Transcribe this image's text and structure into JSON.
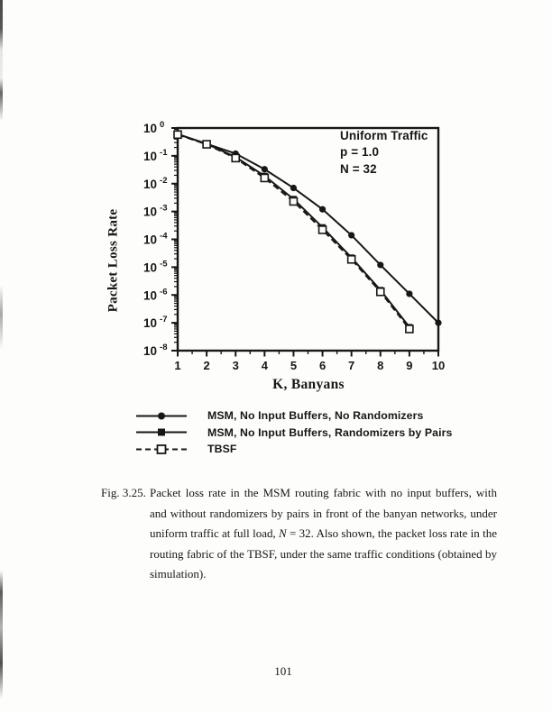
{
  "page": {
    "number": "101"
  },
  "caption": {
    "label": "Fig. 3.25.",
    "text": "Packet loss rate in the MSM routing fabric with no input buffers, with and without randomizers by pairs in front of the banyan networks, under uniform traffic at full load, N = 32. Also shown, the packet loss rate in the routing fabric of the TBSF, under the same traffic conditions (obtained by simulation)."
  },
  "chart_data": {
    "type": "line",
    "title": "",
    "xlabel": "K, Banyans",
    "ylabel": "Packet Loss Rate",
    "x_range": [
      1,
      10
    ],
    "x_ticks": [
      1,
      2,
      3,
      4,
      5,
      6,
      7,
      8,
      9,
      10
    ],
    "y_scale": "log",
    "y_tick_exponents": [
      0,
      -1,
      -2,
      -3,
      -4,
      -5,
      -6,
      -7,
      -8
    ],
    "ylim_exponents": [
      -8,
      0
    ],
    "grid": false,
    "legend_position": "below-chart",
    "ink_color": "#171717",
    "annotation": {
      "lines": [
        "Uniform Traffic",
        "p = 1.0",
        "N = 32"
      ]
    },
    "series": [
      {
        "name": "MSM, No Input Buffers, No Randomizers",
        "marker": "filled-circle",
        "line": "solid",
        "x": [
          1,
          2,
          3,
          4,
          5,
          6,
          7,
          8,
          9,
          10
        ],
        "y": [
          0.6,
          0.27,
          0.12,
          0.033,
          0.007,
          0.0012,
          0.00014,
          1.2e-05,
          1.1e-06,
          1e-07
        ]
      },
      {
        "name": "MSM, No Input Buffers, Randomizers by Pairs",
        "marker": "filled-square",
        "line": "solid",
        "x": [
          1,
          2,
          3,
          4,
          5,
          6,
          7,
          8,
          9
        ],
        "y": [
          0.6,
          0.27,
          0.09,
          0.019,
          0.0028,
          0.00027,
          2.2e-05,
          1.5e-06,
          7e-08
        ]
      },
      {
        "name": "TBSF",
        "marker": "open-square",
        "line": "dashed",
        "x": [
          1,
          2,
          3,
          4,
          5,
          6,
          7,
          8,
          9
        ],
        "y": [
          0.58,
          0.26,
          0.083,
          0.016,
          0.0023,
          0.00022,
          1.9e-05,
          1.3e-06,
          6e-08
        ]
      }
    ]
  }
}
